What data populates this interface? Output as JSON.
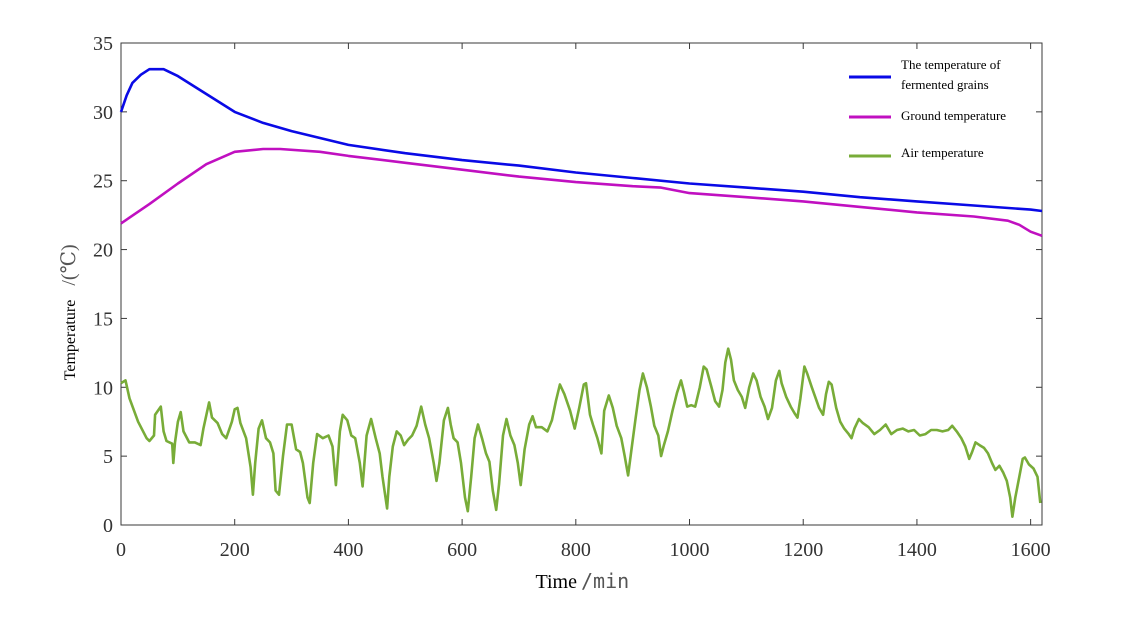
{
  "chart_data": {
    "type": "line",
    "xlabel": "Time",
    "xlabel_unit": "/min",
    "ylabel": "Temperature",
    "ylabel_unit": "/(℃)",
    "xlim": [
      0,
      1620
    ],
    "ylim": [
      0,
      35
    ],
    "x_ticks": [
      "0",
      "200",
      "400",
      "600",
      "800",
      "1000",
      "1200",
      "1400",
      "1600"
    ],
    "y_ticks": [
      "0",
      "5",
      "10",
      "15",
      "20",
      "25",
      "30",
      "35"
    ],
    "grid": false,
    "legend_position": "top-right",
    "series": [
      {
        "name_lines": [
          "The temperature of",
          "fermented grains"
        ],
        "color": "#0a0ae6",
        "points": [
          [
            0,
            30
          ],
          [
            10,
            31.2
          ],
          [
            20,
            32.1
          ],
          [
            35,
            32.7
          ],
          [
            50,
            33.1
          ],
          [
            75,
            33.1
          ],
          [
            100,
            32.6
          ],
          [
            150,
            31.3
          ],
          [
            200,
            30
          ],
          [
            250,
            29.2
          ],
          [
            300,
            28.6
          ],
          [
            350,
            28.1
          ],
          [
            400,
            27.6
          ],
          [
            500,
            27
          ],
          [
            600,
            26.5
          ],
          [
            700,
            26.1
          ],
          [
            800,
            25.6
          ],
          [
            900,
            25.2
          ],
          [
            1000,
            24.8
          ],
          [
            1100,
            24.5
          ],
          [
            1200,
            24.2
          ],
          [
            1300,
            23.8
          ],
          [
            1400,
            23.5
          ],
          [
            1500,
            23.2
          ],
          [
            1600,
            22.9
          ],
          [
            1620,
            22.8
          ]
        ]
      },
      {
        "name": "Ground temperature",
        "color": "#c010c0",
        "points": [
          [
            0,
            21.9
          ],
          [
            50,
            23.3
          ],
          [
            100,
            24.8
          ],
          [
            150,
            26.2
          ],
          [
            200,
            27.1
          ],
          [
            250,
            27.3
          ],
          [
            280,
            27.3
          ],
          [
            350,
            27.1
          ],
          [
            400,
            26.8
          ],
          [
            500,
            26.3
          ],
          [
            600,
            25.8
          ],
          [
            700,
            25.3
          ],
          [
            800,
            24.9
          ],
          [
            900,
            24.6
          ],
          [
            950,
            24.5
          ],
          [
            1000,
            24.1
          ],
          [
            1100,
            23.8
          ],
          [
            1200,
            23.5
          ],
          [
            1300,
            23.1
          ],
          [
            1400,
            22.7
          ],
          [
            1500,
            22.4
          ],
          [
            1560,
            22.1
          ],
          [
            1580,
            21.8
          ],
          [
            1600,
            21.3
          ],
          [
            1620,
            21.0
          ]
        ]
      },
      {
        "name": "Air temperature",
        "color": "#78ac38",
        "points": [
          [
            0,
            10.3
          ],
          [
            8,
            10.5
          ],
          [
            15,
            9.2
          ],
          [
            30,
            7.5
          ],
          [
            45,
            6.3
          ],
          [
            50,
            6.1
          ],
          [
            58,
            6.5
          ],
          [
            60,
            8.0
          ],
          [
            70,
            8.6
          ],
          [
            75,
            6.8
          ],
          [
            80,
            6.1
          ],
          [
            90,
            5.9
          ],
          [
            92,
            4.5
          ],
          [
            95,
            6
          ],
          [
            100,
            7.5
          ],
          [
            105,
            8.2
          ],
          [
            110,
            6.8
          ],
          [
            120,
            6.0
          ],
          [
            130,
            6.0
          ],
          [
            140,
            5.8
          ],
          [
            145,
            7.0
          ],
          [
            155,
            8.9
          ],
          [
            160,
            7.8
          ],
          [
            170,
            7.4
          ],
          [
            178,
            6.6
          ],
          [
            185,
            6.3
          ],
          [
            195,
            7.5
          ],
          [
            200,
            8.4
          ],
          [
            205,
            8.5
          ],
          [
            210,
            7.4
          ],
          [
            220,
            6.3
          ],
          [
            228,
            4.2
          ],
          [
            232,
            2.2
          ],
          [
            236,
            4.5
          ],
          [
            242,
            7.0
          ],
          [
            248,
            7.6
          ],
          [
            255,
            6.3
          ],
          [
            262,
            6.0
          ],
          [
            268,
            5.2
          ],
          [
            272,
            2.5
          ],
          [
            278,
            2.2
          ],
          [
            285,
            5.0
          ],
          [
            292,
            7.3
          ],
          [
            300,
            7.3
          ],
          [
            308,
            5.5
          ],
          [
            315,
            5.3
          ],
          [
            320,
            4.5
          ],
          [
            328,
            2.0
          ],
          [
            332,
            1.6
          ],
          [
            338,
            4.5
          ],
          [
            345,
            6.6
          ],
          [
            355,
            6.3
          ],
          [
            365,
            6.5
          ],
          [
            372,
            5.7
          ],
          [
            378,
            2.9
          ],
          [
            385,
            6.8
          ],
          [
            390,
            8.0
          ],
          [
            398,
            7.6
          ],
          [
            405,
            6.5
          ],
          [
            412,
            6.3
          ],
          [
            420,
            4.5
          ],
          [
            425,
            2.8
          ],
          [
            432,
            6.5
          ],
          [
            440,
            7.7
          ],
          [
            448,
            6.3
          ],
          [
            455,
            5.2
          ],
          [
            460,
            3.5
          ],
          [
            468,
            1.2
          ],
          [
            472,
            3.5
          ],
          [
            478,
            5.7
          ],
          [
            485,
            6.8
          ],
          [
            492,
            6.5
          ],
          [
            498,
            5.8
          ],
          [
            505,
            6.2
          ],
          [
            512,
            6.5
          ],
          [
            520,
            7.2
          ],
          [
            528,
            8.6
          ],
          [
            535,
            7.3
          ],
          [
            542,
            6.3
          ],
          [
            550,
            4.5
          ],
          [
            555,
            3.2
          ],
          [
            560,
            4.5
          ],
          [
            568,
            7.6
          ],
          [
            575,
            8.5
          ],
          [
            580,
            7.3
          ],
          [
            585,
            6.3
          ],
          [
            592,
            6.0
          ],
          [
            598,
            4.5
          ],
          [
            605,
            2.0
          ],
          [
            610,
            1.0
          ],
          [
            616,
            3.5
          ],
          [
            622,
            6.3
          ],
          [
            628,
            7.3
          ],
          [
            635,
            6.3
          ],
          [
            642,
            5.2
          ],
          [
            648,
            4.6
          ],
          [
            654,
            2.5
          ],
          [
            660,
            1.1
          ],
          [
            665,
            3.0
          ],
          [
            672,
            6.5
          ],
          [
            678,
            7.7
          ],
          [
            685,
            6.5
          ],
          [
            692,
            5.8
          ],
          [
            698,
            4.5
          ],
          [
            703,
            2.9
          ],
          [
            710,
            5.5
          ],
          [
            718,
            7.3
          ],
          [
            724,
            7.9
          ],
          [
            730,
            7.1
          ],
          [
            740,
            7.1
          ],
          [
            750,
            6.8
          ],
          [
            758,
            7.6
          ],
          [
            765,
            9.0
          ],
          [
            772,
            10.2
          ],
          [
            780,
            9.5
          ],
          [
            790,
            8.3
          ],
          [
            798,
            7.0
          ],
          [
            806,
            8.5
          ],
          [
            814,
            10.2
          ],
          [
            818,
            10.3
          ],
          [
            825,
            8.0
          ],
          [
            830,
            7.3
          ],
          [
            838,
            6.3
          ],
          [
            845,
            5.2
          ],
          [
            850,
            8.3
          ],
          [
            858,
            9.4
          ],
          [
            865,
            8.5
          ],
          [
            872,
            7.2
          ],
          [
            880,
            6.3
          ],
          [
            886,
            5.0
          ],
          [
            892,
            3.6
          ],
          [
            898,
            5.5
          ],
          [
            905,
            7.7
          ],
          [
            912,
            9.8
          ],
          [
            918,
            11.0
          ],
          [
            925,
            10.0
          ],
          [
            932,
            8.6
          ],
          [
            938,
            7.2
          ],
          [
            945,
            6.5
          ],
          [
            950,
            5.0
          ],
          [
            955,
            5.8
          ],
          [
            962,
            6.8
          ],
          [
            970,
            8.3
          ],
          [
            978,
            9.6
          ],
          [
            985,
            10.5
          ],
          [
            990,
            9.7
          ],
          [
            996,
            8.6
          ],
          [
            1003,
            8.7
          ],
          [
            1010,
            8.6
          ],
          [
            1018,
            10.0
          ],
          [
            1025,
            11.5
          ],
          [
            1030,
            11.3
          ],
          [
            1038,
            10.1
          ],
          [
            1045,
            9.0
          ],
          [
            1052,
            8.6
          ],
          [
            1058,
            9.8
          ],
          [
            1063,
            11.8
          ],
          [
            1068,
            12.8
          ],
          [
            1073,
            12.0
          ],
          [
            1078,
            10.5
          ],
          [
            1085,
            9.8
          ],
          [
            1092,
            9.3
          ],
          [
            1098,
            8.5
          ],
          [
            1105,
            10.0
          ],
          [
            1112,
            11.0
          ],
          [
            1118,
            10.5
          ],
          [
            1125,
            9.3
          ],
          [
            1132,
            8.6
          ],
          [
            1138,
            7.7
          ],
          [
            1145,
            8.5
          ],
          [
            1152,
            10.5
          ],
          [
            1158,
            11.2
          ],
          [
            1162,
            10.3
          ],
          [
            1170,
            9.3
          ],
          [
            1178,
            8.6
          ],
          [
            1185,
            8.1
          ],
          [
            1190,
            7.8
          ],
          [
            1195,
            9.2
          ],
          [
            1202,
            11.5
          ],
          [
            1207,
            11.0
          ],
          [
            1215,
            10.0
          ],
          [
            1222,
            9.2
          ],
          [
            1228,
            8.5
          ],
          [
            1235,
            8.0
          ],
          [
            1240,
            9.5
          ],
          [
            1245,
            10.4
          ],
          [
            1250,
            10.2
          ],
          [
            1258,
            8.5
          ],
          [
            1265,
            7.5
          ],
          [
            1272,
            7.0
          ],
          [
            1280,
            6.6
          ],
          [
            1285,
            6.3
          ],
          [
            1290,
            7.0
          ],
          [
            1298,
            7.7
          ],
          [
            1305,
            7.4
          ],
          [
            1315,
            7.1
          ],
          [
            1325,
            6.6
          ],
          [
            1335,
            6.9
          ],
          [
            1345,
            7.3
          ],
          [
            1355,
            6.6
          ],
          [
            1365,
            6.9
          ],
          [
            1375,
            7.0
          ],
          [
            1385,
            6.8
          ],
          [
            1395,
            6.9
          ],
          [
            1405,
            6.5
          ],
          [
            1415,
            6.6
          ],
          [
            1425,
            6.9
          ],
          [
            1435,
            6.9
          ],
          [
            1445,
            6.8
          ],
          [
            1455,
            6.9
          ],
          [
            1462,
            7.2
          ],
          [
            1470,
            6.8
          ],
          [
            1478,
            6.3
          ],
          [
            1485,
            5.7
          ],
          [
            1492,
            4.8
          ],
          [
            1497,
            5.3
          ],
          [
            1503,
            6.0
          ],
          [
            1510,
            5.8
          ],
          [
            1518,
            5.6
          ],
          [
            1525,
            5.2
          ],
          [
            1532,
            4.5
          ],
          [
            1538,
            4.0
          ],
          [
            1545,
            4.3
          ],
          [
            1552,
            3.8
          ],
          [
            1558,
            3.2
          ],
          [
            1564,
            2.0
          ],
          [
            1568,
            0.6
          ],
          [
            1573,
            2.0
          ],
          [
            1580,
            3.5
          ],
          [
            1586,
            4.8
          ],
          [
            1590,
            4.9
          ],
          [
            1597,
            4.4
          ],
          [
            1605,
            4.1
          ],
          [
            1612,
            3.5
          ],
          [
            1617,
            1.6
          ]
        ]
      }
    ]
  }
}
